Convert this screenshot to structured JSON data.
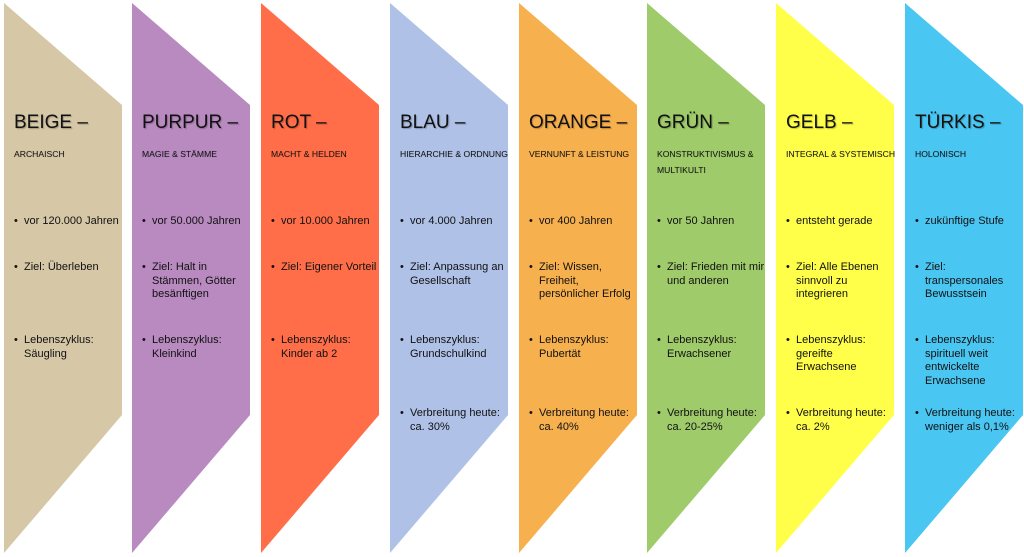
{
  "columns": [
    {
      "title": "BEIGE –",
      "subtitle": "ARCHAISCH",
      "color": "#D6C7A7",
      "items": [
        "vor 120.000 Jahren",
        "Ziel: Überleben",
        "Lebenszyklus: Säugling"
      ]
    },
    {
      "title": "PURPUR –",
      "subtitle": "MAGIE & STÄMME",
      "color": "#B88AC0",
      "items": [
        "vor 50.000 Jahren",
        "Ziel: Halt in Stämmen, Götter besänftigen",
        "Lebenszyklus: Kleinkind"
      ]
    },
    {
      "title": "ROT –",
      "subtitle": "MACHT & HELDEN",
      "color": "#FF6E48",
      "items": [
        "vor 10.000 Jahren",
        "Ziel: Eigener Vorteil",
        "Lebenszyklus: Kinder ab 2"
      ]
    },
    {
      "title": "BLAU –",
      "subtitle": "HIERARCHIE & ORDNUNG",
      "color": "#AFC1E6",
      "items": [
        "vor 4.000 Jahren",
        "Ziel: Anpassung an Gesellschaft",
        "Lebenszyklus: Grundschulkind",
        "Verbreitung heute: ca. 30%"
      ]
    },
    {
      "title": "ORANGE –",
      "subtitle": "VERNUNFT & LEISTUNG",
      "color": "#F7B04E",
      "items": [
        "vor 400 Jahren",
        "Ziel: Wissen, Freiheit, persönlicher Erfolg",
        "Lebenszyklus: Pubertät",
        "Verbreitung heute: ca. 40%"
      ]
    },
    {
      "title": "GRÜN –",
      "subtitle": "KONSTRUKTIVISMUS & MULTIKULTI",
      "color": "#9FCB6A",
      "items": [
        "vor 50 Jahren",
        "Ziel: Frieden mit mir und anderen",
        "Lebenszyklus: Erwachsener",
        "Verbreitung heute: ca. 20-25%"
      ]
    },
    {
      "title": "GELB –",
      "subtitle": "INTEGRAL & SYSTEMISCH",
      "color": "#FFFF4A",
      "items": [
        "entsteht gerade",
        "Ziel: Alle Ebenen sinnvoll zu integrieren",
        "Lebenszyklus: gereifte Erwachsene",
        "Verbreitung heute: ca. 2%"
      ]
    },
    {
      "title": "TÜRKIS –",
      "subtitle": "HOLONISCH",
      "color": "#4AC6F2",
      "items": [
        "zukünftige Stufe",
        "Ziel: transpersonales Bewusstsein",
        "Lebenszyklus: spirituell weit entwickelte Erwachsene",
        "Verbreitung heute: weniger als 0,1%"
      ]
    }
  ]
}
